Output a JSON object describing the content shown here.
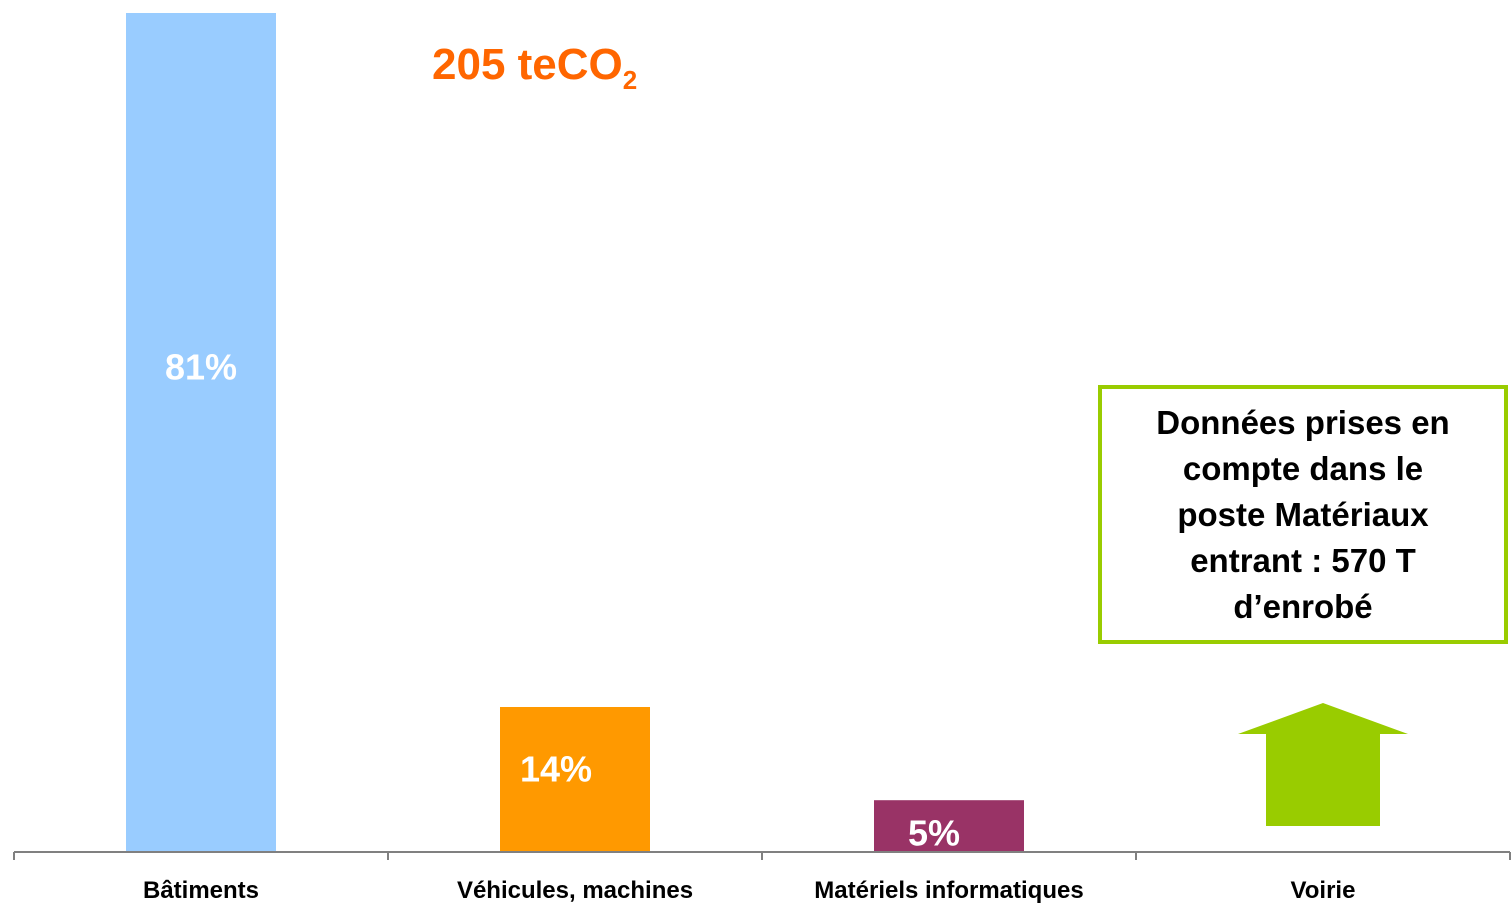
{
  "chart_data": {
    "type": "bar",
    "total_value": "205 teCO",
    "total_subscript": "2",
    "categories": [
      "Bâtiments",
      "Véhicules, machines",
      "Matériels informatiques",
      "Voirie"
    ],
    "values": [
      81,
      14,
      5,
      null
    ],
    "value_labels": [
      "81%",
      "14%",
      "5%",
      ""
    ],
    "bar_colors": [
      "#99ccff",
      "#ff9900",
      "#993366",
      ""
    ],
    "ylim": [
      0,
      81
    ],
    "grid": false,
    "annotation": {
      "category": "Voirie",
      "lines": [
        "Données prises en",
        "compte dans le",
        "poste Matériaux",
        "entrant : 570 T",
        "d’enrobé"
      ],
      "border_color": "#99cc00",
      "arrow_color": "#99cc00",
      "arrow_icon": "up-arrow-icon"
    }
  }
}
